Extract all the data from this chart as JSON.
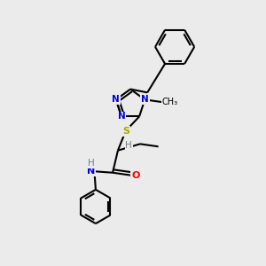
{
  "bg_color": "#ebebeb",
  "bond_color": "#000000",
  "bond_width": 1.5,
  "figsize": [
    3.0,
    3.0
  ],
  "dpi": 100,
  "atom_colors": {
    "N": "#0000ee",
    "S": "#aaaa00",
    "O": "#ff0000",
    "C": "#000000",
    "H": "#708090"
  },
  "xlim": [
    0,
    10
  ],
  "ylim": [
    0,
    10
  ]
}
